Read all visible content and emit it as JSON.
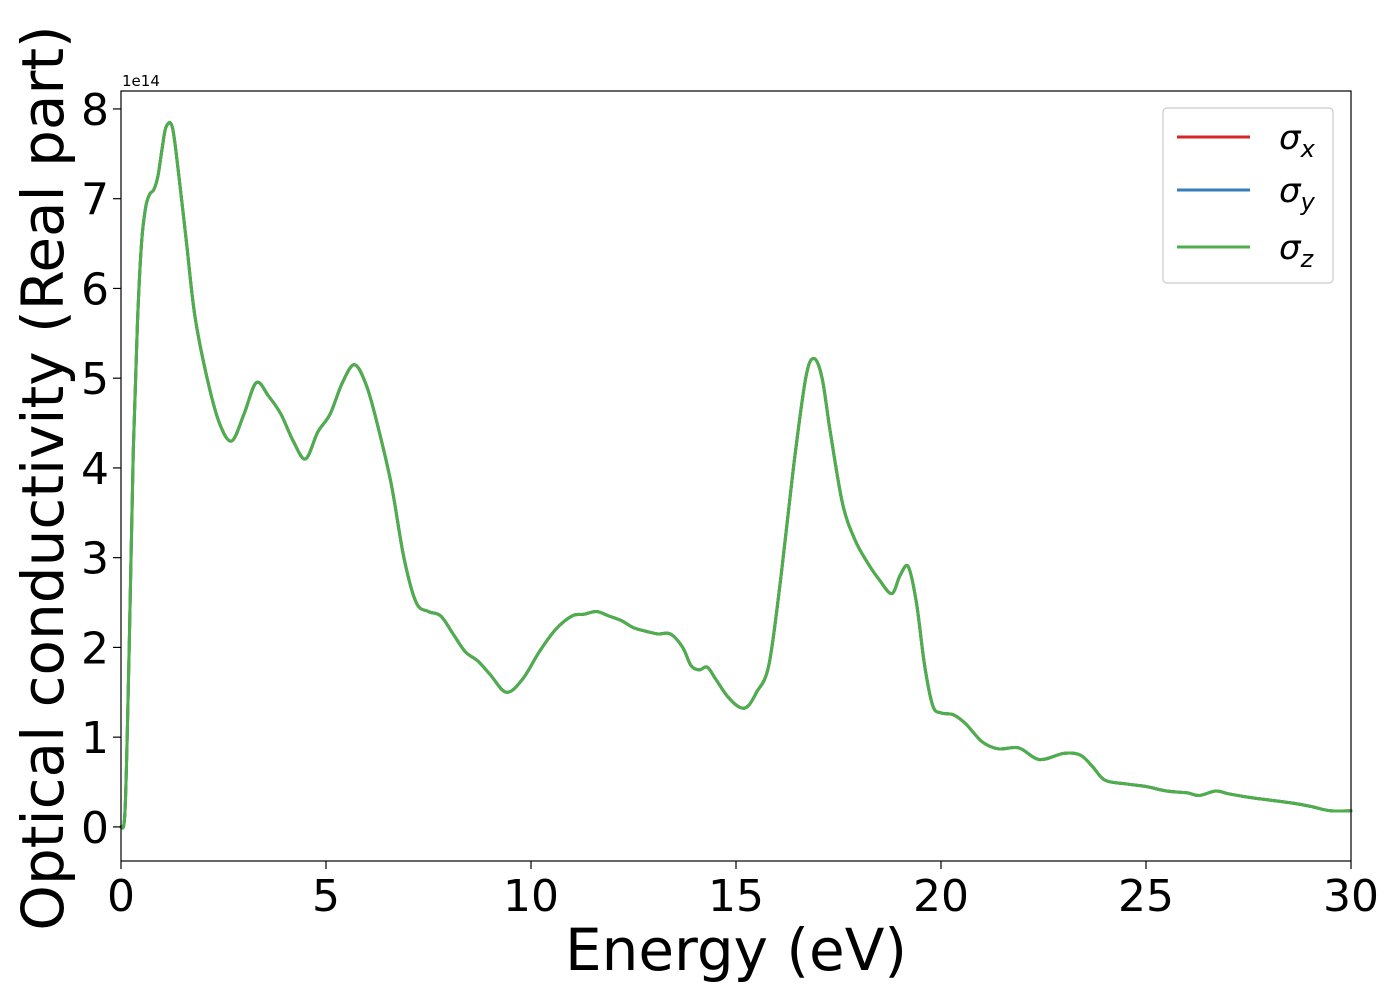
{
  "chart_data": {
    "type": "line",
    "title": "",
    "xlabel": "Energy (eV)",
    "ylabel": "Optical conductivity (Real part)",
    "y_offset_label": "1e14",
    "xlim": [
      0,
      30
    ],
    "ylim": [
      -0.38,
      8.2
    ],
    "xticks": [
      0,
      5,
      10,
      15,
      20,
      25,
      30
    ],
    "xtick_labels": [
      "0",
      "5",
      "10",
      "15",
      "20",
      "25",
      "30"
    ],
    "yticks": [
      0,
      1,
      2,
      3,
      4,
      5,
      6,
      7,
      8
    ],
    "ytick_labels": [
      "0",
      "1",
      "2",
      "3",
      "4",
      "5",
      "6",
      "7",
      "8"
    ],
    "grid": false,
    "legend_position": "top-right",
    "x": [
      0,
      0.1,
      0.2,
      0.3,
      0.4,
      0.5,
      0.6,
      0.7,
      0.8,
      0.9,
      1.0,
      1.1,
      1.25,
      1.4,
      1.6,
      1.8,
      2.1,
      2.4,
      2.7,
      3.0,
      3.3,
      3.6,
      3.9,
      4.2,
      4.5,
      4.8,
      5.1,
      5.4,
      5.7,
      6.0,
      6.3,
      6.6,
      6.9,
      7.2,
      7.5,
      7.8,
      8.1,
      8.4,
      8.7,
      9.0,
      9.4,
      9.8,
      10.2,
      10.6,
      11.0,
      11.3,
      11.6,
      11.9,
      12.2,
      12.5,
      12.8,
      13.1,
      13.4,
      13.7,
      13.9,
      14.1,
      14.3,
      14.5,
      14.8,
      15.1,
      15.3,
      15.5,
      15.8,
      16.1,
      16.4,
      16.7,
      16.9,
      17.1,
      17.3,
      17.6,
      17.9,
      18.2,
      18.5,
      18.8,
      19.0,
      19.2,
      19.4,
      19.6,
      19.8,
      20.0,
      20.3,
      20.6,
      21.0,
      21.4,
      21.9,
      22.4,
      23.0,
      23.4,
      23.7,
      24.0,
      24.5,
      25.0,
      25.5,
      26.0,
      26.3,
      26.7,
      27.0,
      27.5,
      28.0,
      28.5,
      29.0,
      29.5,
      30.0
    ],
    "series": [
      {
        "name": "σx",
        "color": "#d62728",
        "values": [
          0.0,
          0.2,
          2.0,
          4.2,
          5.6,
          6.5,
          6.9,
          7.05,
          7.1,
          7.25,
          7.55,
          7.8,
          7.8,
          7.3,
          6.5,
          5.7,
          5.0,
          4.5,
          4.3,
          4.6,
          4.95,
          4.8,
          4.6,
          4.3,
          4.1,
          4.4,
          4.6,
          4.95,
          5.15,
          4.9,
          4.4,
          3.8,
          3.0,
          2.5,
          2.4,
          2.35,
          2.15,
          1.95,
          1.85,
          1.7,
          1.5,
          1.65,
          1.95,
          2.2,
          2.35,
          2.37,
          2.4,
          2.35,
          2.3,
          2.22,
          2.18,
          2.15,
          2.15,
          2.0,
          1.8,
          1.75,
          1.78,
          1.65,
          1.45,
          1.33,
          1.35,
          1.5,
          1.8,
          2.8,
          4.0,
          5.0,
          5.22,
          5.0,
          4.4,
          3.6,
          3.2,
          2.95,
          2.75,
          2.6,
          2.8,
          2.9,
          2.5,
          1.8,
          1.35,
          1.27,
          1.25,
          1.15,
          0.95,
          0.87,
          0.88,
          0.75,
          0.82,
          0.8,
          0.67,
          0.52,
          0.48,
          0.45,
          0.4,
          0.38,
          0.35,
          0.4,
          0.37,
          0.33,
          0.3,
          0.27,
          0.23,
          0.18,
          0.18
        ]
      },
      {
        "name": "σy",
        "color": "#377eb8",
        "values": [
          0.0,
          0.2,
          2.0,
          4.2,
          5.6,
          6.5,
          6.9,
          7.05,
          7.1,
          7.25,
          7.55,
          7.8,
          7.8,
          7.3,
          6.5,
          5.7,
          5.0,
          4.5,
          4.3,
          4.6,
          4.95,
          4.8,
          4.6,
          4.3,
          4.1,
          4.4,
          4.6,
          4.95,
          5.15,
          4.9,
          4.4,
          3.8,
          3.0,
          2.5,
          2.4,
          2.35,
          2.15,
          1.95,
          1.85,
          1.7,
          1.5,
          1.65,
          1.95,
          2.2,
          2.35,
          2.37,
          2.4,
          2.35,
          2.3,
          2.22,
          2.18,
          2.15,
          2.15,
          2.0,
          1.8,
          1.75,
          1.78,
          1.65,
          1.45,
          1.33,
          1.35,
          1.5,
          1.8,
          2.8,
          4.0,
          5.0,
          5.22,
          5.0,
          4.4,
          3.6,
          3.2,
          2.95,
          2.75,
          2.6,
          2.8,
          2.9,
          2.5,
          1.8,
          1.35,
          1.27,
          1.25,
          1.15,
          0.95,
          0.87,
          0.88,
          0.75,
          0.82,
          0.8,
          0.67,
          0.52,
          0.48,
          0.45,
          0.4,
          0.38,
          0.35,
          0.4,
          0.37,
          0.33,
          0.3,
          0.27,
          0.23,
          0.18,
          0.18
        ]
      },
      {
        "name": "σz",
        "color": "#4daf4a",
        "values": [
          0.0,
          0.2,
          2.0,
          4.2,
          5.6,
          6.5,
          6.9,
          7.05,
          7.1,
          7.25,
          7.55,
          7.8,
          7.8,
          7.3,
          6.5,
          5.7,
          5.0,
          4.5,
          4.3,
          4.6,
          4.95,
          4.8,
          4.6,
          4.3,
          4.1,
          4.4,
          4.6,
          4.95,
          5.15,
          4.9,
          4.4,
          3.8,
          3.0,
          2.5,
          2.4,
          2.35,
          2.15,
          1.95,
          1.85,
          1.7,
          1.5,
          1.65,
          1.95,
          2.2,
          2.35,
          2.37,
          2.4,
          2.35,
          2.3,
          2.22,
          2.18,
          2.15,
          2.15,
          2.0,
          1.8,
          1.75,
          1.78,
          1.65,
          1.45,
          1.33,
          1.35,
          1.5,
          1.8,
          2.8,
          4.0,
          5.0,
          5.22,
          5.0,
          4.4,
          3.6,
          3.2,
          2.95,
          2.75,
          2.6,
          2.8,
          2.9,
          2.5,
          1.8,
          1.35,
          1.27,
          1.25,
          1.15,
          0.95,
          0.87,
          0.88,
          0.75,
          0.82,
          0.8,
          0.67,
          0.52,
          0.48,
          0.45,
          0.4,
          0.38,
          0.35,
          0.4,
          0.37,
          0.33,
          0.3,
          0.27,
          0.23,
          0.18,
          0.18
        ]
      }
    ]
  },
  "legend": {
    "entries": [
      {
        "symbol": "σ",
        "sub": "x"
      },
      {
        "symbol": "σ",
        "sub": "y"
      },
      {
        "symbol": "σ",
        "sub": "z"
      }
    ]
  }
}
